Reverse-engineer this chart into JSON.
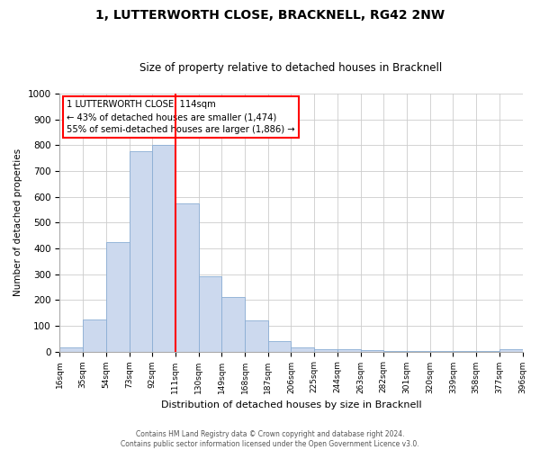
{
  "title": "1, LUTTERWORTH CLOSE, BRACKNELL, RG42 2NW",
  "subtitle": "Size of property relative to detached houses in Bracknell",
  "xlabel": "Distribution of detached houses by size in Bracknell",
  "ylabel": "Number of detached properties",
  "bin_edges": [
    16,
    35,
    54,
    73,
    92,
    111,
    130,
    149,
    168,
    187,
    206,
    225,
    244,
    263,
    282,
    301,
    320,
    339,
    358,
    377,
    396
  ],
  "bin_labels": [
    "16sqm",
    "35sqm",
    "54sqm",
    "73sqm",
    "92sqm",
    "111sqm",
    "130sqm",
    "149sqm",
    "168sqm",
    "187sqm",
    "206sqm",
    "225sqm",
    "244sqm",
    "263sqm",
    "282sqm",
    "301sqm",
    "320sqm",
    "339sqm",
    "358sqm",
    "377sqm",
    "396sqm"
  ],
  "bar_heights": [
    15,
    125,
    425,
    775,
    800,
    575,
    290,
    210,
    120,
    40,
    15,
    10,
    8,
    5,
    3,
    2,
    2,
    1,
    1,
    10
  ],
  "bar_color": "#ccd9ee",
  "bar_edgecolor": "#8aadd4",
  "vline_x": 111,
  "vline_color": "red",
  "ylim": [
    0,
    1000
  ],
  "annotation_box_text": "1 LUTTERWORTH CLOSE: 114sqm\n← 43% of detached houses are smaller (1,474)\n55% of semi-detached houses are larger (1,886) →",
  "annotation_box_color": "white",
  "annotation_box_edgecolor": "red",
  "footnote1": "Contains HM Land Registry data © Crown copyright and database right 2024.",
  "footnote2": "Contains public sector information licensed under the Open Government Licence v3.0.",
  "figsize": [
    6.0,
    5.0
  ],
  "dpi": 100
}
